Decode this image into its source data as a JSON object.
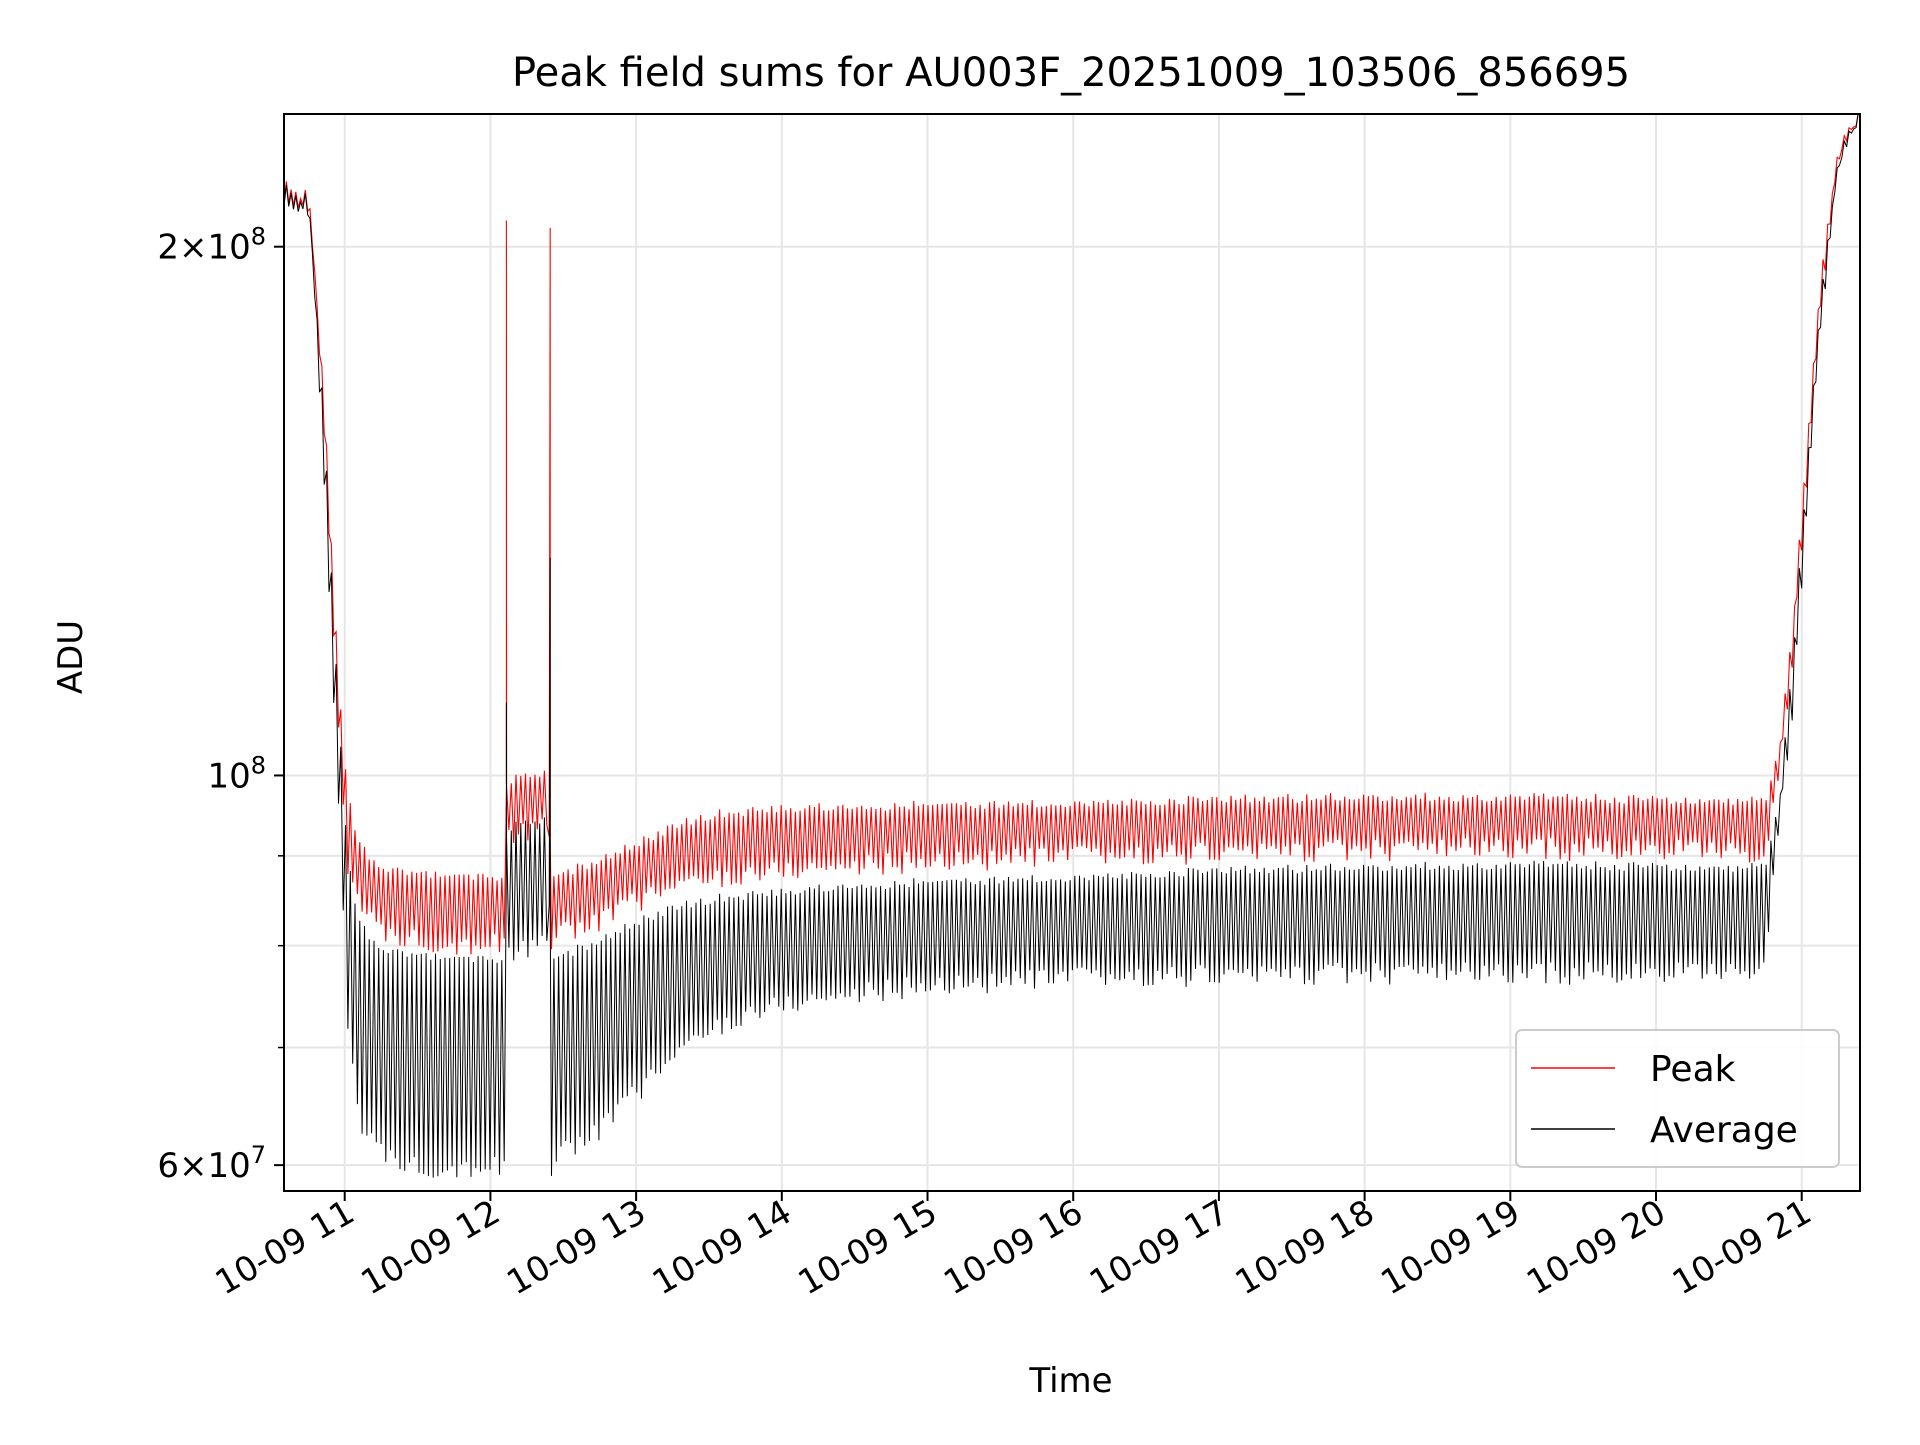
{
  "chart_data": {
    "type": "line",
    "title": "Peak field sums for AU003F_20251009_103506_856695",
    "xlabel": "Time",
    "ylabel": "ADU",
    "yscale": "log",
    "xlim": [
      10.5833,
      21.4
    ],
    "ylim": [
      58000000,
      238000000
    ],
    "grid": true,
    "legend_position": "lower-right",
    "x_unit": "hours on 10-09",
    "x_ticks": [
      {
        "value": 11,
        "label": "10-09 11"
      },
      {
        "value": 12,
        "label": "10-09 12"
      },
      {
        "value": 13,
        "label": "10-09 13"
      },
      {
        "value": 14,
        "label": "10-09 14"
      },
      {
        "value": 15,
        "label": "10-09 15"
      },
      {
        "value": 16,
        "label": "10-09 16"
      },
      {
        "value": 17,
        "label": "10-09 17"
      },
      {
        "value": 18,
        "label": "10-09 18"
      },
      {
        "value": 19,
        "label": "10-09 19"
      },
      {
        "value": 20,
        "label": "10-09 20"
      },
      {
        "value": 21,
        "label": "10-09 21"
      }
    ],
    "y_major_ticks": [
      {
        "value": 60000000,
        "mantissa": "6",
        "base": "10",
        "exp": "7"
      },
      {
        "value": 100000000,
        "mantissa": "",
        "base": "10",
        "exp": "8"
      },
      {
        "value": 200000000,
        "mantissa": "2",
        "base": "10",
        "exp": "8"
      }
    ],
    "y_minor_ticks": [
      70000000,
      80000000,
      90000000
    ],
    "series": [
      {
        "name": "Peak",
        "color": "#ff0000",
        "envelope": {
          "x": [
            10.5833,
            10.75,
            10.78,
            10.85,
            10.92,
            10.97,
            11.02,
            11.1,
            11.25,
            11.5,
            11.75,
            12.1,
            12.11,
            12.3,
            12.39,
            12.41,
            12.5,
            12.75,
            13.0,
            13.25,
            13.5,
            13.75,
            14.0,
            14.5,
            15.0,
            16.0,
            17.0,
            18.0,
            19.0,
            20.0,
            20.6,
            20.75,
            20.85,
            20.95,
            21.05,
            21.15,
            21.25,
            21.4
          ],
          "high": [
            212000000,
            212000000,
            200000000,
            170000000,
            130000000,
            110000000,
            98000000,
            92000000,
            89000000,
            88500000,
            88000000,
            88000000,
            100000000,
            100500000,
            101000000,
            88000000,
            88500000,
            90000000,
            92000000,
            94000000,
            95500000,
            96000000,
            96500000,
            96500000,
            96800000,
            97000000,
            97500000,
            97800000,
            97800000,
            97500000,
            97200000,
            97500000,
            105000000,
            125000000,
            160000000,
            200000000,
            228000000,
            238000000
          ],
          "low": [
            212000000,
            212000000,
            195000000,
            160000000,
            120000000,
            100000000,
            88000000,
            83000000,
            80000000,
            79500000,
            79000000,
            79000000,
            91000000,
            91500000,
            92000000,
            79500000,
            80000000,
            81500000,
            83500000,
            85000000,
            86000000,
            86500000,
            87000000,
            87500000,
            88000000,
            88500000,
            89000000,
            89300000,
            89500000,
            89300000,
            89000000,
            89500000,
            98000000,
            118000000,
            150000000,
            190000000,
            220000000,
            238000000
          ]
        },
        "spikes": [
          {
            "x": 12.11,
            "value": 207000000
          },
          {
            "x": 12.41,
            "value": 205000000
          }
        ]
      },
      {
        "name": "Average",
        "color": "#000000",
        "envelope": {
          "x": [
            10.5833,
            10.75,
            10.78,
            10.85,
            10.92,
            10.97,
            11.02,
            11.1,
            11.25,
            11.5,
            11.75,
            12.1,
            12.11,
            12.3,
            12.39,
            12.41,
            12.5,
            12.75,
            13.0,
            13.25,
            13.5,
            13.75,
            14.0,
            14.5,
            15.0,
            16.0,
            17.0,
            18.0,
            19.0,
            20.0,
            20.6,
            20.75,
            20.85,
            20.95,
            21.05,
            21.15,
            21.25,
            21.4
          ],
          "high": [
            211000000,
            211000000,
            198000000,
            165000000,
            125000000,
            105000000,
            90000000,
            83000000,
            80000000,
            79500000,
            79000000,
            79000000,
            94000000,
            94500000,
            95000000,
            79000000,
            79500000,
            81000000,
            83000000,
            84500000,
            85500000,
            86000000,
            86500000,
            87000000,
            87500000,
            88000000,
            88800000,
            89200000,
            89500000,
            89300000,
            89000000,
            89500000,
            98000000,
            120000000,
            155000000,
            195000000,
            225000000,
            238000000
          ],
          "low": [
            211000000,
            211000000,
            190000000,
            150000000,
            110000000,
            90000000,
            72000000,
            62000000,
            60000000,
            59000000,
            59000000,
            59000000,
            78000000,
            78500000,
            79000000,
            59000000,
            60000000,
            62000000,
            65000000,
            68000000,
            70500000,
            72000000,
            73000000,
            74000000,
            74800000,
            75500000,
            75800000,
            76000000,
            76000000,
            76000000,
            76000000,
            78000000,
            92000000,
            110000000,
            145000000,
            185000000,
            218000000,
            238000000
          ]
        },
        "spikes": [
          {
            "x": 12.11,
            "value": 110000000
          },
          {
            "x": 12.41,
            "value": 133000000
          }
        ]
      }
    ],
    "legend": [
      {
        "label": "Peak",
        "color": "#ff0000"
      },
      {
        "label": "Average",
        "color": "#000000"
      }
    ]
  }
}
